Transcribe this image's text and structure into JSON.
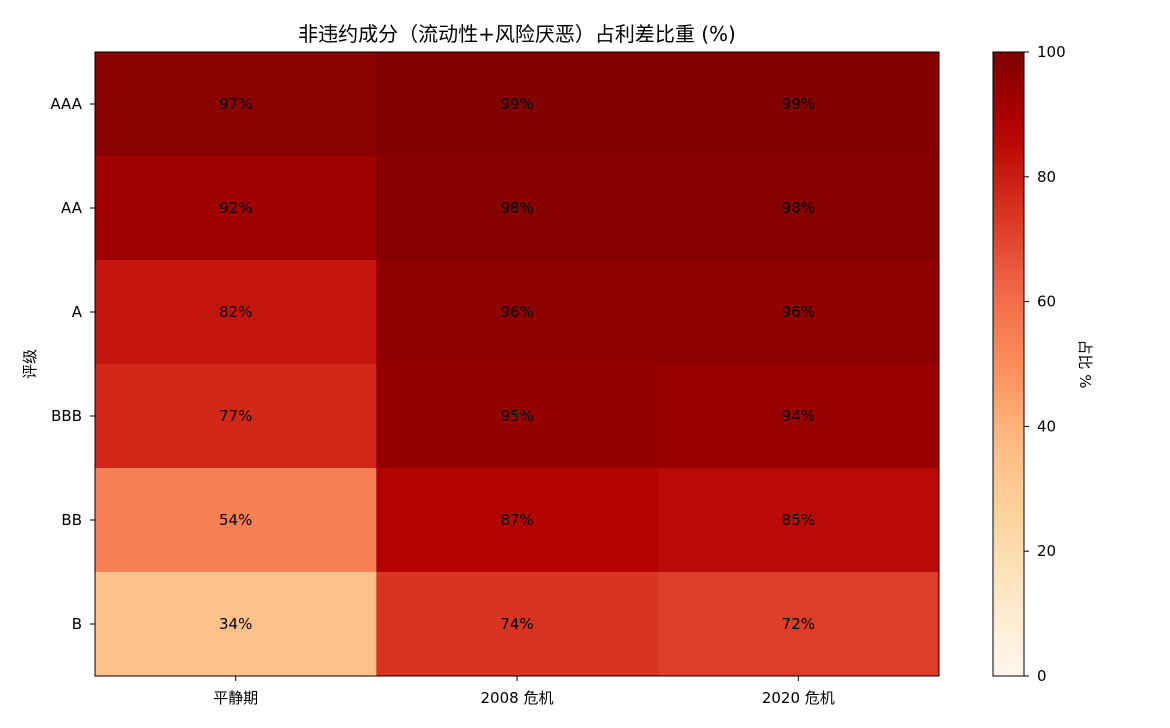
{
  "chart_data": {
    "type": "heatmap",
    "title": "非违约成分（流动性+风险厌恶）占利差比重 (%)",
    "xlabel": "",
    "ylabel": "评级",
    "x_categories": [
      "平静期",
      "2008 危机",
      "2020 危机"
    ],
    "y_categories": [
      "AAA",
      "AA",
      "A",
      "BBB",
      "BB",
      "B"
    ],
    "values": [
      [
        97,
        99,
        99
      ],
      [
        92,
        98,
        98
      ],
      [
        82,
        96,
        96
      ],
      [
        77,
        95,
        94
      ],
      [
        54,
        87,
        85
      ],
      [
        34,
        74,
        72
      ]
    ],
    "value_format": "{v}%",
    "colormap": "OrRd",
    "color_range": [
      0,
      100
    ],
    "colorbar": {
      "label": "占比 %",
      "ticks": [
        0,
        20,
        40,
        60,
        80,
        100
      ]
    },
    "grid": false
  }
}
